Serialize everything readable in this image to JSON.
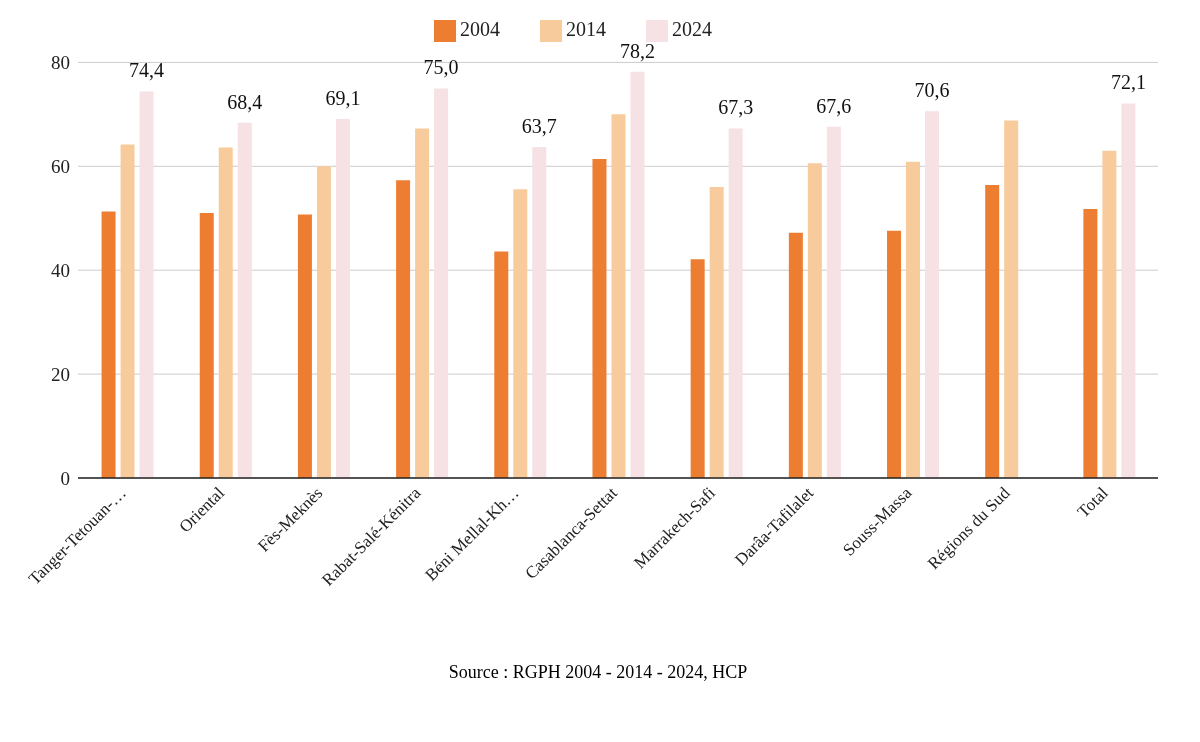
{
  "chart_data": {
    "type": "bar",
    "categories": [
      "Tanger-Tetouan-…",
      "Oriental",
      "Fès-Meknès",
      "Rabat-Salé-Kénitra",
      "Béni Mellal-Kh…",
      "Casablanca-Settat",
      "Marrakech-Safi",
      "Darâa-Tafilalet",
      "Souss-Massa",
      "Régions du Sud",
      "Total"
    ],
    "series": [
      {
        "name": "2004",
        "color": "#ed7d31",
        "values": [
          51.3,
          51.0,
          50.7,
          57.3,
          43.6,
          61.4,
          42.1,
          47.2,
          47.6,
          56.4,
          51.8
        ]
      },
      {
        "name": "2014",
        "color": "#f8cb9c",
        "values": [
          64.2,
          63.6,
          60.0,
          67.3,
          55.6,
          70.0,
          56.0,
          60.6,
          60.9,
          68.8,
          63.0
        ]
      },
      {
        "name": "2024",
        "color": "#f6e1e4",
        "values": [
          74.4,
          68.4,
          69.1,
          75.0,
          63.7,
          78.2,
          67.3,
          67.6,
          70.6,
          null,
          72.1
        ],
        "value_labels": [
          "74,4",
          "68,4",
          "69,1",
          "75,0",
          "63,7",
          "78,2",
          "67,3",
          "67,6",
          "70,6",
          null,
          "72,1"
        ]
      }
    ],
    "ylim": [
      0,
      80
    ],
    "yticks": [
      0,
      20,
      40,
      60,
      80
    ],
    "grid": "y",
    "legend": "top",
    "annotations": [
      "Source : RGPH 2004 - 2014 - 2024, HCP"
    ]
  }
}
